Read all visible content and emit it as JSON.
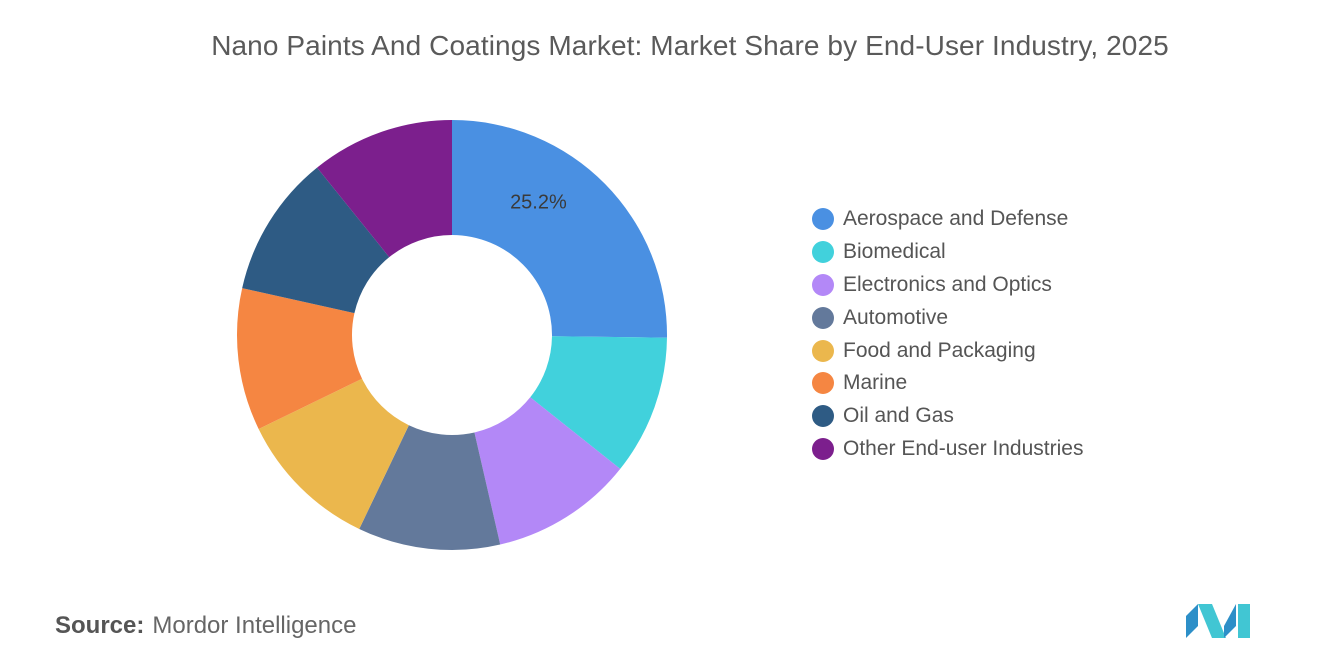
{
  "title": "Nano Paints And Coatings Market: Market Share by End-User Industry, 2025",
  "chart_data": {
    "type": "pie",
    "donut": true,
    "title": "Nano Paints And Coatings Market: Market Share by End-User Industry, 2025",
    "legend_position": "right",
    "categories": [
      "Aerospace and Defense",
      "Biomedical",
      "Electronics and Optics",
      "Automotive",
      "Food and Packaging",
      "Marine",
      "Oil and Gas",
      "Other End-user Industries"
    ],
    "values": [
      25.2,
      10.5,
      10.7,
      10.7,
      10.7,
      10.7,
      10.7,
      10.8
    ],
    "colors": [
      "#4a90e2",
      "#41d1dc",
      "#b388f7",
      "#63799b",
      "#ebb74d",
      "#f58642",
      "#2e5b84",
      "#7c1f8d"
    ],
    "data_labels": [
      "25.2%",
      "",
      "",
      "",
      "",
      "",
      "",
      ""
    ]
  },
  "source": {
    "label": "Source:",
    "value": "Mordor Intelligence"
  },
  "logo_icon": "mordor-intelligence-logo"
}
